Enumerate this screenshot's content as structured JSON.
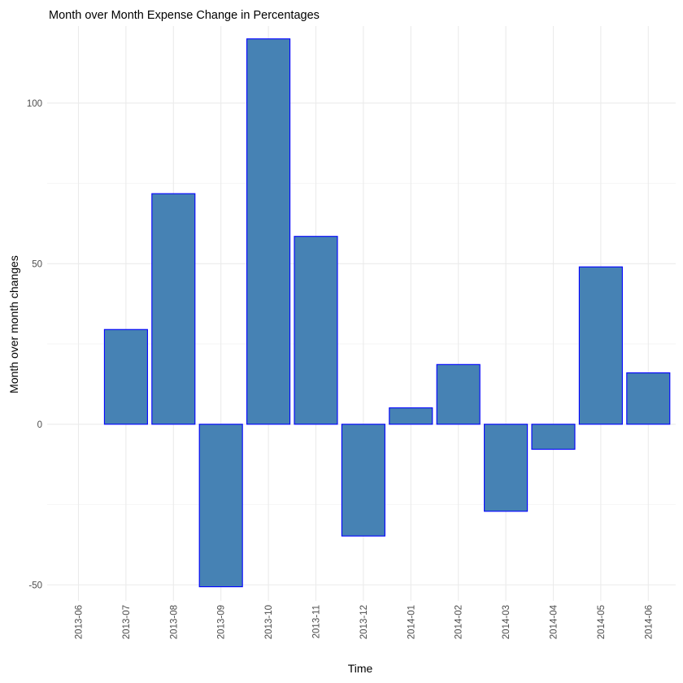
{
  "chart_data": {
    "type": "bar",
    "title": "Month over Month Expense Change in Percentages",
    "xlabel": "Time",
    "ylabel": "Month over month changes",
    "categories": [
      "2013-06",
      "2013-07",
      "2013-08",
      "2013-09",
      "2013-10",
      "2013-11",
      "2013-12",
      "2014-01",
      "2014-02",
      "2014-03",
      "2014-04",
      "2014-05",
      "2014-06"
    ],
    "values": [
      null,
      29.5,
      71.8,
      -50.6,
      120,
      58.5,
      -34.8,
      5.1,
      18.6,
      -27.1,
      -7.8,
      49,
      16
    ],
    "ylim": [
      -55,
      124
    ],
    "yticks": [
      -50,
      0,
      50,
      100
    ],
    "grid": true,
    "legend": "none",
    "bar_fill": "#4682b4",
    "bar_stroke": "#0000ff"
  }
}
